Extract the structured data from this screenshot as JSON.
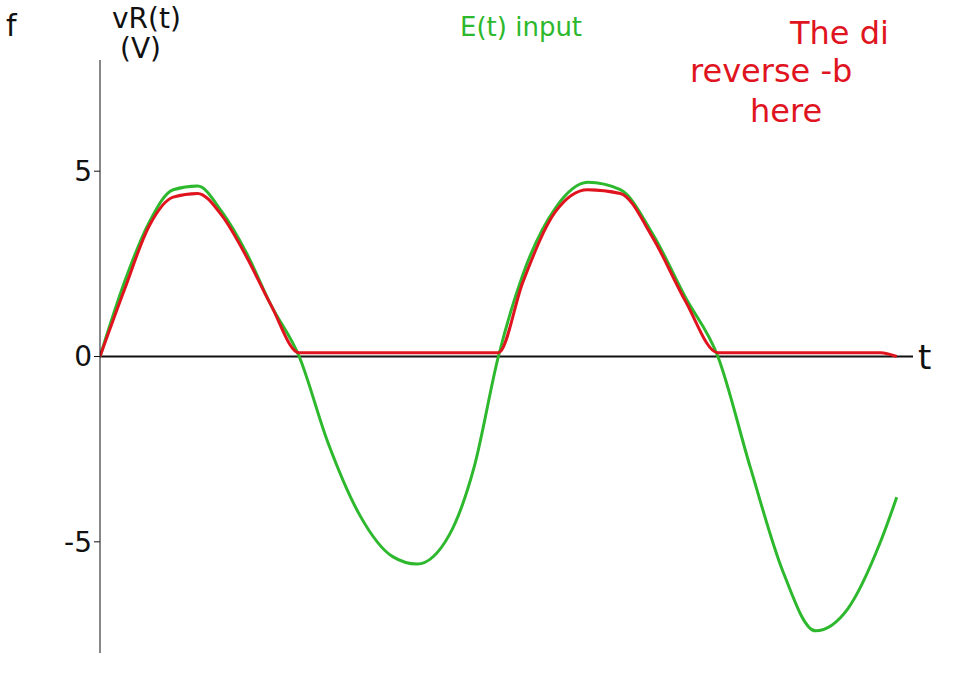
{
  "chart_data": {
    "type": "line",
    "x": [
      0,
      0.3,
      0.6,
      0.9,
      1.2,
      1.5,
      1.8,
      2.1,
      2.45,
      2.8,
      3.2,
      3.6,
      3.9,
      4.3,
      4.6,
      4.9,
      5.2,
      5.6,
      6.0,
      6.4,
      6.8,
      7.2,
      7.6,
      8.0,
      8.4,
      8.8,
      9.2,
      9.6,
      9.8
    ],
    "series": [
      {
        "color": "#2db82d",
        "values": [
          0,
          2.0,
          3.6,
          4.5,
          4.6,
          3.9,
          2.8,
          1.4,
          0,
          -2.3,
          -4.3,
          -5.4,
          -5.6,
          -4.8,
          -3.0,
          0,
          2.2,
          4.0,
          4.7,
          4.5,
          3.3,
          1.6,
          0,
          -3.0,
          -5.8,
          -7.4,
          -6.8,
          -5.0,
          -3.8
        ]
      },
      {
        "color": "#e0141e",
        "values": [
          0,
          1.8,
          3.5,
          4.3,
          4.4,
          3.8,
          2.7,
          1.4,
          0.1,
          0.1,
          0.1,
          0.1,
          0.1,
          0.1,
          0.1,
          0.1,
          2.0,
          3.9,
          4.5,
          4.4,
          3.2,
          1.5,
          0.1,
          0.1,
          0.1,
          0.1,
          0.1,
          0.1,
          0
        ]
      }
    ],
    "xlim": [
      0,
      10
    ],
    "ylim": [
      -8,
      8
    ],
    "yticks": [
      -5,
      0,
      5
    ],
    "tick_labels": "y",
    "x_label": "t",
    "y_label_lines": [
      "vR(t)",
      "(V)"
    ],
    "annotations": [
      {
        "text": "E(t) input",
        "color": "#2db82d"
      },
      {
        "text": "The di",
        "color": "#e0141e"
      },
      {
        "text": "reverse -b",
        "color": "#e0141e"
      },
      {
        "text": "here",
        "color": "#e0141e"
      },
      {
        "text": "f",
        "color": "#111111"
      }
    ]
  }
}
